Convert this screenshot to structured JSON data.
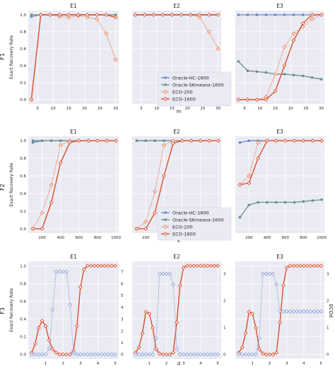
{
  "colors": {
    "bg": "#eaeaf2",
    "grid": "#ffffff",
    "hc": "#6a87c7",
    "skm": "#6a8f8c",
    "eco200": "#e87a4f",
    "eco1600": "#d9502f",
    "ecod": "#8aa1d6"
  },
  "labels": {
    "row_labels": [
      "F1",
      "F2",
      "F3"
    ],
    "ylabel": "Exact Recovery Rate",
    "row1_xlabel": "m",
    "row2_xlabel": "k",
    "row3_xlabel": "d",
    "row3_right_label": "ECOd",
    "legend": [
      "Oracle-HC-1600",
      "Oracle-SKmeans-1600",
      "ECO-200",
      "ECO-1600"
    ]
  },
  "chart_data": [
    {
      "type": "line",
      "title": "E1",
      "xlabel": "",
      "ylabel": "Exact Recovery Rate",
      "ylim": [
        0,
        1
      ],
      "grid": true,
      "x": [
        3,
        6,
        9,
        12,
        15,
        18,
        21,
        24,
        27,
        30
      ],
      "xticks": [
        "5",
        "10",
        "15",
        "20",
        "25",
        "30"
      ],
      "yticks": [
        "0.0",
        "0.2",
        "0.4",
        "0.6",
        "0.8",
        "1.0"
      ],
      "series": [
        {
          "name": "Oracle-HC-1600",
          "values": [
            0.98,
            1,
            1,
            1,
            1,
            1,
            1,
            1,
            1,
            1
          ]
        },
        {
          "name": "Oracle-SKmeans-1600",
          "values": [
            1,
            1,
            1,
            1,
            1,
            1,
            1,
            1,
            1,
            1
          ]
        },
        {
          "name": "ECO-200",
          "values": [
            0,
            1,
            1,
            0.98,
            0.97,
            0.99,
            0.97,
            0.95,
            0.78,
            0.47
          ]
        },
        {
          "name": "ECO-1600",
          "values": [
            0,
            1,
            1,
            1,
            1,
            1,
            1,
            1,
            1,
            0.97
          ]
        }
      ]
    },
    {
      "type": "line",
      "title": "E2",
      "xlabel": "m",
      "ylabel": "",
      "ylim": [
        0,
        1
      ],
      "grid": true,
      "x": [
        3,
        6,
        9,
        12,
        15,
        18,
        21,
        24,
        27,
        30
      ],
      "xticks": [
        "5",
        "10",
        "15",
        "20",
        "25",
        "30"
      ],
      "yticks": [],
      "legend": "center-left",
      "series": [
        {
          "name": "Oracle-HC-1600",
          "values": [
            1,
            1,
            1,
            1,
            1,
            1,
            1,
            1,
            1,
            1
          ]
        },
        {
          "name": "Oracle-SKmeans-1600",
          "values": [
            1,
            1,
            1,
            1,
            1,
            1,
            1,
            1,
            1,
            1
          ]
        },
        {
          "name": "ECO-200",
          "values": [
            1,
            1,
            1,
            1,
            1,
            1,
            1,
            0.97,
            0.8,
            0.6
          ]
        },
        {
          "name": "ECO-1600",
          "values": [
            1,
            1,
            1,
            1,
            1,
            1,
            1,
            1,
            1,
            1
          ]
        }
      ]
    },
    {
      "type": "line",
      "title": "E3",
      "xlabel": "",
      "ylabel": "",
      "ylim": [
        0,
        1
      ],
      "grid": true,
      "x": [
        3,
        6,
        9,
        12,
        15,
        18,
        21,
        24,
        27,
        30
      ],
      "xticks": [
        "5",
        "10",
        "15",
        "20",
        "25",
        "30"
      ],
      "yticks": [],
      "series": [
        {
          "name": "Oracle-HC-1600",
          "values": [
            1,
            1,
            1,
            1,
            1,
            1,
            1,
            1,
            1,
            1
          ]
        },
        {
          "name": "Oracle-SKmeans-1600",
          "values": [
            0.45,
            0.34,
            0.33,
            0.32,
            0.3,
            0.3,
            0.29,
            0.28,
            0.26,
            0.24
          ]
        },
        {
          "name": "ECO-200",
          "values": [
            0,
            0,
            0,
            0.03,
            0.3,
            0.62,
            0.78,
            0.86,
            0.95,
            1
          ]
        },
        {
          "name": "ECO-1600",
          "values": [
            0,
            0,
            0,
            0,
            0.1,
            0.4,
            0.7,
            0.9,
            1,
            1
          ]
        }
      ]
    },
    {
      "type": "line",
      "title": "E1",
      "xlabel": "",
      "ylabel": "Exact Recovery Rate",
      "ylim": [
        0,
        1
      ],
      "grid": true,
      "x": [
        100,
        200,
        300,
        400,
        500,
        600,
        700,
        800,
        900,
        1000
      ],
      "xticks": [
        "200",
        "400",
        "600",
        "800",
        "1000"
      ],
      "yticks": [
        "0.0",
        "0.2",
        "0.4",
        "0.6",
        "0.8",
        "1.0"
      ],
      "series": [
        {
          "name": "Oracle-HC-1600",
          "values": [
            0.98,
            1,
            1,
            1,
            1,
            1,
            1,
            1,
            1,
            1
          ]
        },
        {
          "name": "Oracle-SKmeans-1600",
          "values": [
            1,
            1,
            1,
            1,
            1,
            1,
            1,
            1,
            1,
            1
          ]
        },
        {
          "name": "ECO-200",
          "values": [
            0,
            0.18,
            0.5,
            0.95,
            1,
            1,
            1,
            1,
            1,
            1
          ]
        },
        {
          "name": "ECO-1600",
          "values": [
            0,
            0,
            0.3,
            0.75,
            0.98,
            1,
            1,
            1,
            1,
            1
          ]
        }
      ]
    },
    {
      "type": "line",
      "title": "E2",
      "xlabel": "k",
      "ylabel": "",
      "ylim": [
        0,
        1
      ],
      "grid": true,
      "x": [
        100,
        200,
        300,
        400,
        500,
        600,
        700,
        800,
        900,
        1000
      ],
      "xticks": [
        "200",
        "400",
        "600",
        "800",
        "1000"
      ],
      "yticks": [],
      "legend": "bottom-center",
      "series": [
        {
          "name": "Oracle-HC-1600",
          "values": [
            1,
            1,
            1,
            1,
            1,
            1,
            1,
            1,
            1,
            1
          ]
        },
        {
          "name": "Oracle-SKmeans-1600",
          "values": [
            1,
            1,
            1,
            1,
            1,
            1,
            1,
            1,
            1,
            1
          ]
        },
        {
          "name": "ECO-200",
          "values": [
            0,
            0.08,
            0.42,
            0.95,
            1,
            1,
            1,
            1,
            1,
            1
          ]
        },
        {
          "name": "ECO-1600",
          "values": [
            0,
            0,
            0.18,
            0.6,
            0.97,
            1,
            1,
            1,
            1,
            1
          ]
        }
      ]
    },
    {
      "type": "line",
      "title": "E3",
      "xlabel": "",
      "ylabel": "",
      "ylim": [
        0,
        1
      ],
      "grid": true,
      "x": [
        100,
        200,
        300,
        400,
        500,
        600,
        700,
        800,
        900,
        1000
      ],
      "xticks": [
        "200",
        "400",
        "600",
        "800",
        "1000"
      ],
      "yticks": [],
      "series": [
        {
          "name": "Oracle-HC-1600",
          "values": [
            0.98,
            1,
            1,
            1,
            1,
            1,
            1,
            1,
            1,
            1
          ]
        },
        {
          "name": "Oracle-SKmeans-1600",
          "values": [
            0.13,
            0.27,
            0.3,
            0.3,
            0.3,
            0.3,
            0.3,
            0.31,
            0.32,
            0.33
          ]
        },
        {
          "name": "ECO-200",
          "values": [
            0.5,
            0.6,
            0.98,
            1,
            1,
            1,
            1,
            1,
            1,
            1
          ]
        },
        {
          "name": "ECO-1600",
          "values": [
            0.5,
            0.52,
            0.8,
            1,
            1,
            1,
            1,
            1,
            1,
            1
          ]
        }
      ]
    },
    {
      "type": "line",
      "title": "E1",
      "xlabel": "",
      "ylabel": "Exact Recovery Rate",
      "ylim": [
        0,
        1
      ],
      "y2lim": [
        0,
        7.5
      ],
      "grid": true,
      "x": [
        0.2,
        0.4,
        0.6,
        0.8,
        1.0,
        1.2,
        1.4,
        1.6,
        1.8,
        2.0,
        2.2,
        2.4,
        2.6,
        2.8,
        3.0,
        3.2,
        3.4,
        3.6,
        3.8,
        4.0,
        4.2,
        4.4,
        4.6,
        4.8,
        5.0
      ],
      "xticks": [
        "1",
        "2",
        "3",
        "4",
        "5"
      ],
      "yticks": [
        "0.0",
        "0.2",
        "0.4",
        "0.6",
        "0.8",
        "1.0"
      ],
      "y2ticks": [
        "0",
        "1",
        "2",
        "3",
        "4",
        "5",
        "6",
        "7"
      ],
      "series": [
        {
          "name": "ECO-1600",
          "values": [
            0.02,
            0.12,
            0.3,
            0.38,
            0.32,
            0.16,
            0.06,
            0.02,
            0.0,
            0.0,
            0.0,
            0.0,
            0.04,
            0.32,
            0.76,
            0.96,
            1,
            1,
            1,
            1,
            1,
            1,
            1,
            1,
            1
          ]
        },
        {
          "name": "ECOd",
          "axis": "right",
          "values": [
            0,
            0,
            0,
            0,
            0,
            0.5,
            3.8,
            7,
            7,
            7,
            7,
            4.2,
            0.1,
            0,
            0,
            0,
            0,
            0,
            0,
            0,
            0,
            0,
            0,
            0,
            0
          ]
        }
      ]
    },
    {
      "type": "line",
      "title": "E2",
      "xlabel": "d",
      "ylabel": "",
      "ylim": [
        0,
        1
      ],
      "y2lim": [
        0,
        3.3
      ],
      "grid": true,
      "x": [
        0.2,
        0.4,
        0.6,
        0.8,
        1.0,
        1.2,
        1.4,
        1.6,
        1.8,
        2.0,
        2.2,
        2.4,
        2.6,
        2.8,
        3.0,
        3.2,
        3.4,
        3.6,
        3.8,
        4.0,
        4.2,
        4.4,
        4.6,
        4.8,
        5.0
      ],
      "xticks": [
        "1",
        "2",
        "3",
        "4",
        "5"
      ],
      "yticks": [],
      "y2ticks": [
        "0",
        "1",
        "2",
        "3"
      ],
      "series": [
        {
          "name": "ECO-1600",
          "values": [
            0.02,
            0.08,
            0.24,
            0.48,
            0.46,
            0.3,
            0.06,
            0.01,
            0,
            0,
            0,
            0.02,
            0.36,
            0.78,
            0.98,
            1,
            1,
            1,
            1,
            1,
            1,
            1,
            1,
            1,
            1
          ]
        },
        {
          "name": "ECOd",
          "axis": "right",
          "values": [
            0,
            0,
            0,
            0,
            0,
            0,
            0.6,
            3,
            3,
            3,
            3,
            2.6,
            0.2,
            0,
            0,
            0,
            0,
            0,
            0,
            0,
            0,
            0,
            0,
            0,
            0
          ]
        }
      ]
    },
    {
      "type": "line",
      "title": "E3",
      "xlabel": "",
      "ylabel": "",
      "ylim": [
        0,
        1
      ],
      "y2lim": [
        0,
        3.3
      ],
      "grid": true,
      "x": [
        0.2,
        0.4,
        0.6,
        0.8,
        1.0,
        1.2,
        1.4,
        1.6,
        1.8,
        2.0,
        2.2,
        2.4,
        2.6,
        2.8,
        3.0,
        3.2,
        3.4,
        3.6,
        3.8,
        4.0,
        4.2,
        4.4,
        4.6,
        4.8,
        5.0
      ],
      "xticks": [
        "1",
        "2",
        "3",
        "4",
        "5"
      ],
      "yticks": [],
      "y2ticks": [
        "0",
        "1",
        "2",
        "3"
      ],
      "series": [
        {
          "name": "ECO-1600",
          "values": [
            0.02,
            0.08,
            0.24,
            0.48,
            0.46,
            0.3,
            0.06,
            0.01,
            0,
            0,
            0,
            0.02,
            0.36,
            0.78,
            0.98,
            1,
            1,
            1,
            1,
            1,
            1,
            1,
            1,
            1,
            1
          ]
        },
        {
          "name": "ECOd",
          "axis": "right",
          "values": [
            0,
            0,
            0,
            0,
            0,
            0,
            0.6,
            3,
            3,
            3,
            3,
            2.6,
            1.6,
            1.6,
            1.6,
            1.6,
            1.6,
            1.6,
            1.6,
            1.6,
            1.6,
            1.6,
            1.6,
            1.6,
            1.6
          ]
        }
      ]
    }
  ]
}
